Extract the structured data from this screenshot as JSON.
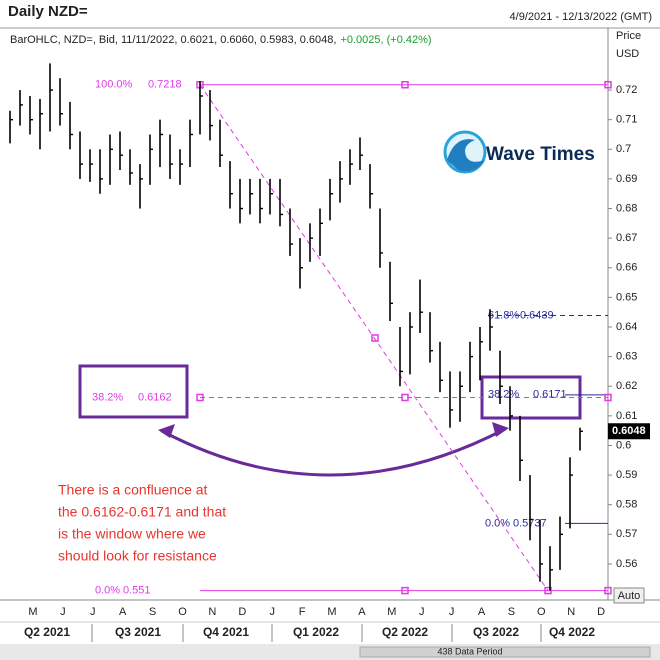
{
  "chart_data": {
    "type": "ohlc",
    "title": "Daily NZD=",
    "date_range": "4/9/2021 - 12/13/2022 (GMT)",
    "legend_text": "BarOHLC, NZD=, Bid, 11/11/2022, 0.6021, 0.6060, 0.5983, 0.6048,",
    "legend_change": "+0.0025, (+0.42%)",
    "axis_title": "Price",
    "axis_unit": "USD",
    "ylim": [
      0.5485,
      0.7369
    ],
    "yticks": [
      0.56,
      0.57,
      0.58,
      0.59,
      0.6,
      0.61,
      0.62,
      0.63,
      0.64,
      0.65,
      0.66,
      0.67,
      0.68,
      0.69,
      0.7,
      0.71,
      0.72
    ],
    "last_price": 0.6048,
    "color": "#000000",
    "high": [
      0.713,
      0.72,
      0.718,
      0.717,
      0.729,
      0.724,
      0.716,
      0.706,
      0.7,
      0.7,
      0.705,
      0.706,
      0.7,
      0.695,
      0.705,
      0.71,
      0.705,
      0.7,
      0.71,
      0.723,
      0.72,
      0.71,
      0.696,
      0.69,
      0.69,
      0.69,
      0.69,
      0.69,
      0.68,
      0.67,
      0.675,
      0.68,
      0.69,
      0.696,
      0.7,
      0.704,
      0.695,
      0.68,
      0.662,
      0.64,
      0.645,
      0.656,
      0.645,
      0.635,
      0.625,
      0.625,
      0.635,
      0.64,
      0.646,
      0.632,
      0.62,
      0.61,
      0.59,
      0.575,
      0.566,
      0.576,
      0.596,
      0.606
    ],
    "low": [
      0.702,
      0.708,
      0.705,
      0.7,
      0.706,
      0.708,
      0.7,
      0.69,
      0.689,
      0.685,
      0.688,
      0.693,
      0.688,
      0.68,
      0.688,
      0.694,
      0.69,
      0.688,
      0.694,
      0.705,
      0.703,
      0.694,
      0.68,
      0.675,
      0.678,
      0.675,
      0.678,
      0.674,
      0.664,
      0.653,
      0.662,
      0.664,
      0.676,
      0.682,
      0.688,
      0.693,
      0.68,
      0.66,
      0.642,
      0.62,
      0.624,
      0.638,
      0.628,
      0.618,
      0.606,
      0.608,
      0.618,
      0.622,
      0.632,
      0.614,
      0.605,
      0.588,
      0.568,
      0.554,
      0.551,
      0.558,
      0.572,
      0.5983
    ],
    "close": [
      0.71,
      0.715,
      0.71,
      0.712,
      0.72,
      0.712,
      0.705,
      0.695,
      0.695,
      0.69,
      0.7,
      0.698,
      0.692,
      0.69,
      0.7,
      0.705,
      0.695,
      0.695,
      0.705,
      0.718,
      0.708,
      0.698,
      0.685,
      0.68,
      0.685,
      0.68,
      0.685,
      0.678,
      0.668,
      0.66,
      0.67,
      0.675,
      0.685,
      0.69,
      0.695,
      0.698,
      0.685,
      0.665,
      0.648,
      0.625,
      0.64,
      0.645,
      0.632,
      0.622,
      0.612,
      0.62,
      0.63,
      0.635,
      0.64,
      0.62,
      0.61,
      0.595,
      0.575,
      0.56,
      0.558,
      0.57,
      0.59,
      0.6048
    ],
    "fib_levels": [
      {
        "label": "100.0%",
        "value": 0.7218,
        "color": "#e23be6"
      },
      {
        "label": "38.2%",
        "value": 0.6162,
        "color": "#e23be6"
      },
      {
        "label": "0.0%",
        "value": 0.551,
        "color": "#e23be6"
      },
      {
        "label": "61.8%",
        "value": 0.6439,
        "color": "#2a2a9c"
      },
      {
        "label": "38.2%",
        "value": 0.6171,
        "color": "#2a2a9c"
      },
      {
        "label": "0.0%",
        "value": 0.5737,
        "color": "#2a2a9c"
      }
    ],
    "months": [
      "M",
      "J",
      "J",
      "A",
      "S",
      "O",
      "N",
      "D",
      "J",
      "F",
      "M",
      "A",
      "M",
      "J",
      "J",
      "A",
      "S",
      "O",
      "N",
      "D"
    ],
    "quarters": [
      "Q2 2021",
      "Q3 2021",
      "Q4 2021",
      "Q1 2022",
      "Q2 2022",
      "Q3 2022",
      "Q4 2022"
    ],
    "annotation": [
      "There is a confluence at",
      "the 0.6162-0.6171 and that",
      "is the window where we",
      "should look for resistance"
    ],
    "logo": "Wave Times",
    "auto_button": "Auto",
    "period_label": "438 Data Period"
  }
}
